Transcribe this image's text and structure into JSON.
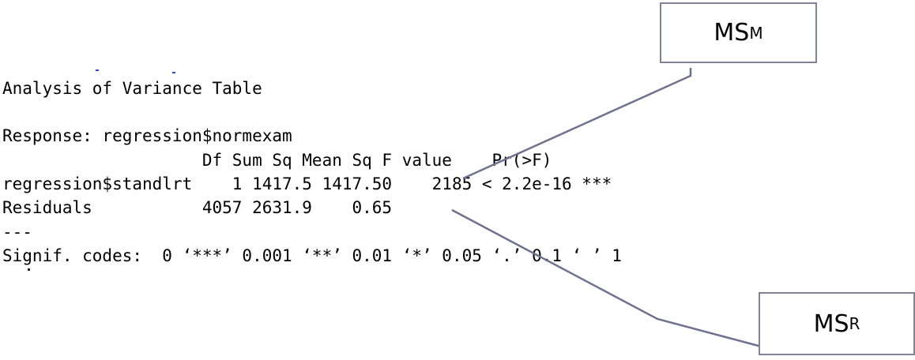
{
  "console": {
    "title": "Analysis of Variance Table",
    "response": "Response: regression$normexam",
    "header": "                    Df Sum Sq Mean Sq F value    Pr(>F)    ",
    "rows": [
      "regression$standlrt    1 1417.5 1417.50    2185 < 2.2e-16 ***",
      "Residuals           4057 2631.9    0.65                      "
    ],
    "separator": "---",
    "signif": "Signif. codes:  0 ‘***’ 0.001 ‘**’ 0.01 ‘*’ 0.05 ‘.’ 0.1 ‘ ’ 1"
  },
  "callouts": {
    "model": {
      "main": "MS",
      "sub": "M"
    },
    "residual": {
      "main": "MS",
      "sub": "R"
    }
  },
  "colors": {
    "text": "#000000",
    "callout_border": "#7f8294",
    "callout_line": "#6e7290",
    "stray_tick": "#3344dd"
  }
}
